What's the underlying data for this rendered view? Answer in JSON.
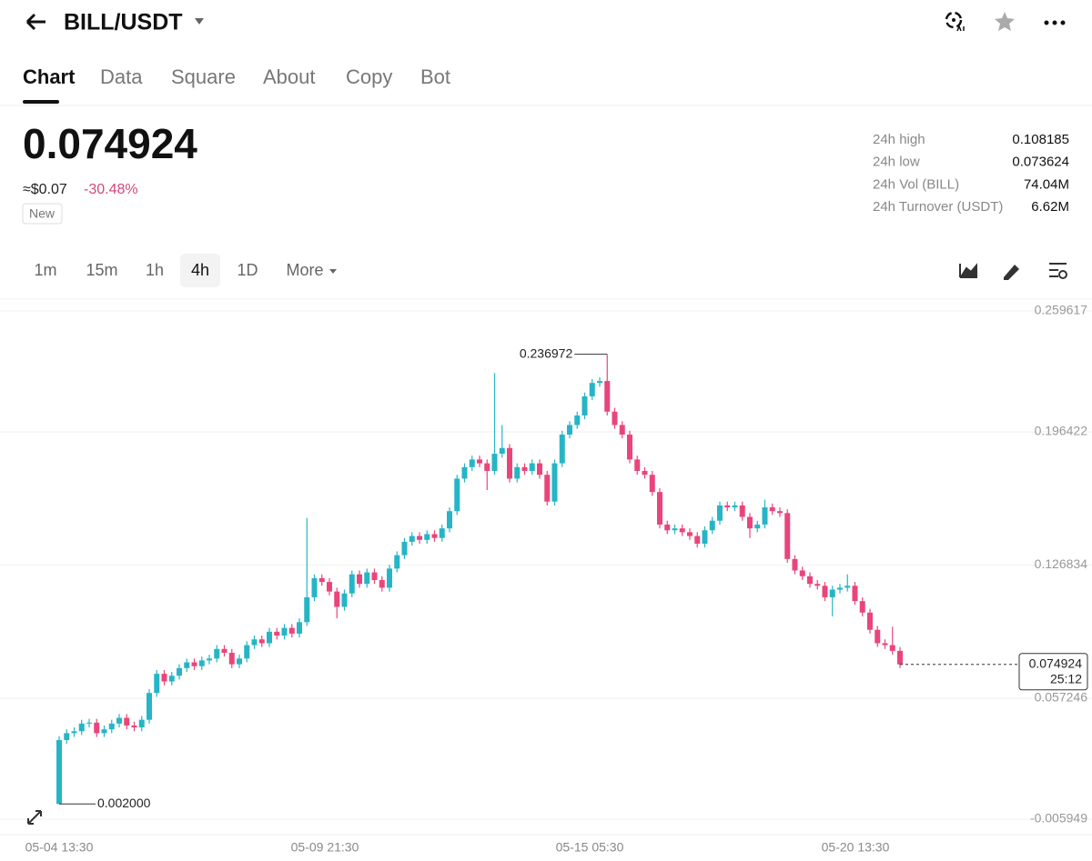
{
  "header": {
    "pair": "BILL/USDT"
  },
  "tabs": [
    "Chart",
    "Data",
    "Square",
    "About",
    "Copy",
    "Bot"
  ],
  "price": {
    "last": "0.074924",
    "approx": "≈$0.07",
    "change": "-30.48%",
    "badge": "New"
  },
  "stats": [
    {
      "label": "24h high",
      "value": "0.108185"
    },
    {
      "label": "24h low",
      "value": "0.073624"
    },
    {
      "label": "24h Vol (BILL)",
      "value": "74.04M"
    },
    {
      "label": "24h Turnover (USDT)",
      "value": "6.62M"
    }
  ],
  "intervals": [
    "1m",
    "15m",
    "1h",
    "4h",
    "1D",
    "More"
  ],
  "chart": {
    "type": "candlestick",
    "up_color": "#26b5c6",
    "down_color": "#e9457b",
    "ylim": [
      -0.005949,
      0.259617
    ],
    "yticks": [
      -0.005949,
      0.057246,
      0.126834,
      0.196422,
      0.259617
    ],
    "grid": true,
    "xtick_labels": [
      "05-04 13:30",
      "05-09 21:30",
      "05-15 05:30",
      "05-20 13:30"
    ],
    "high_label": 0.236972,
    "low_label": {
      "value": 0.002,
      "label": "0.002000"
    },
    "last_price": 0.074924,
    "countdown": "25:12",
    "candles": [
      [
        0.002,
        0.0374,
        0.002,
        0.0354
      ],
      [
        0.0354,
        0.041,
        0.0334,
        0.039
      ],
      [
        0.039,
        0.042,
        0.037,
        0.04
      ],
      [
        0.04,
        0.046,
        0.038,
        0.044
      ],
      [
        0.044,
        0.0465,
        0.042,
        0.0445
      ],
      [
        0.0445,
        0.0465,
        0.037,
        0.039
      ],
      [
        0.039,
        0.043,
        0.037,
        0.041
      ],
      [
        0.041,
        0.046,
        0.039,
        0.044
      ],
      [
        0.044,
        0.049,
        0.042,
        0.047
      ],
      [
        0.047,
        0.049,
        0.041,
        0.043
      ],
      [
        0.043,
        0.045,
        0.04,
        0.042
      ],
      [
        0.042,
        0.048,
        0.04,
        0.046
      ],
      [
        0.046,
        0.062,
        0.044,
        0.06
      ],
      [
        0.06,
        0.072,
        0.058,
        0.07
      ],
      [
        0.07,
        0.072,
        0.064,
        0.066
      ],
      [
        0.066,
        0.071,
        0.064,
        0.069
      ],
      [
        0.069,
        0.075,
        0.067,
        0.073
      ],
      [
        0.073,
        0.078,
        0.071,
        0.076
      ],
      [
        0.076,
        0.078,
        0.072,
        0.074
      ],
      [
        0.074,
        0.079,
        0.072,
        0.077
      ],
      [
        0.077,
        0.08,
        0.075,
        0.078
      ],
      [
        0.078,
        0.085,
        0.076,
        0.083
      ],
      [
        0.083,
        0.085,
        0.079,
        0.081
      ],
      [
        0.081,
        0.083,
        0.073,
        0.075
      ],
      [
        0.075,
        0.08,
        0.073,
        0.078
      ],
      [
        0.078,
        0.087,
        0.076,
        0.085
      ],
      [
        0.085,
        0.09,
        0.083,
        0.088
      ],
      [
        0.088,
        0.09,
        0.084,
        0.086
      ],
      [
        0.086,
        0.094,
        0.084,
        0.092
      ],
      [
        0.092,
        0.094,
        0.088,
        0.09
      ],
      [
        0.09,
        0.096,
        0.088,
        0.094
      ],
      [
        0.094,
        0.096,
        0.089,
        0.091
      ],
      [
        0.091,
        0.099,
        0.089,
        0.097
      ],
      [
        0.097,
        0.1514,
        0.095,
        0.11
      ],
      [
        0.11,
        0.122,
        0.108,
        0.12
      ],
      [
        0.12,
        0.122,
        0.116,
        0.118
      ],
      [
        0.118,
        0.12,
        0.111,
        0.113
      ],
      [
        0.113,
        0.115,
        0.099,
        0.105
      ],
      [
        0.105,
        0.114,
        0.103,
        0.112
      ],
      [
        0.112,
        0.124,
        0.11,
        0.122
      ],
      [
        0.122,
        0.124,
        0.115,
        0.117
      ],
      [
        0.117,
        0.125,
        0.115,
        0.123
      ],
      [
        0.123,
        0.125,
        0.117,
        0.119
      ],
      [
        0.119,
        0.121,
        0.113,
        0.115
      ],
      [
        0.115,
        0.127,
        0.113,
        0.125
      ],
      [
        0.125,
        0.134,
        0.123,
        0.132
      ],
      [
        0.132,
        0.141,
        0.13,
        0.139
      ],
      [
        0.139,
        0.144,
        0.137,
        0.142
      ],
      [
        0.142,
        0.144,
        0.138,
        0.14
      ],
      [
        0.14,
        0.145,
        0.138,
        0.143
      ],
      [
        0.143,
        0.145,
        0.139,
        0.141
      ],
      [
        0.141,
        0.148,
        0.139,
        0.146
      ],
      [
        0.146,
        0.157,
        0.144,
        0.155
      ],
      [
        0.155,
        0.174,
        0.153,
        0.172
      ],
      [
        0.172,
        0.18,
        0.17,
        0.178
      ],
      [
        0.178,
        0.184,
        0.176,
        0.182
      ],
      [
        0.182,
        0.184,
        0.178,
        0.18
      ],
      [
        0.18,
        0.182,
        0.166,
        0.176
      ],
      [
        0.176,
        0.2272,
        0.174,
        0.185
      ],
      [
        0.185,
        0.2,
        0.183,
        0.188
      ],
      [
        0.188,
        0.19,
        0.17,
        0.172
      ],
      [
        0.172,
        0.18,
        0.17,
        0.178
      ],
      [
        0.178,
        0.18,
        0.174,
        0.176
      ],
      [
        0.176,
        0.182,
        0.174,
        0.18
      ],
      [
        0.18,
        0.182,
        0.172,
        0.174
      ],
      [
        0.174,
        0.176,
        0.158,
        0.16
      ],
      [
        0.16,
        0.182,
        0.158,
        0.18
      ],
      [
        0.18,
        0.197,
        0.178,
        0.195
      ],
      [
        0.195,
        0.202,
        0.193,
        0.2
      ],
      [
        0.2,
        0.207,
        0.198,
        0.205
      ],
      [
        0.205,
        0.217,
        0.203,
        0.215
      ],
      [
        0.215,
        0.224,
        0.213,
        0.222
      ],
      [
        0.222,
        0.225,
        0.22,
        0.223
      ],
      [
        0.223,
        0.236972,
        0.205,
        0.207
      ],
      [
        0.207,
        0.209,
        0.198,
        0.2
      ],
      [
        0.2,
        0.202,
        0.193,
        0.195
      ],
      [
        0.195,
        0.197,
        0.18,
        0.182
      ],
      [
        0.182,
        0.184,
        0.174,
        0.176
      ],
      [
        0.176,
        0.178,
        0.172,
        0.174
      ],
      [
        0.174,
        0.176,
        0.163,
        0.165
      ],
      [
        0.165,
        0.167,
        0.146,
        0.148
      ],
      [
        0.148,
        0.15,
        0.143,
        0.145
      ],
      [
        0.145,
        0.148,
        0.143,
        0.146
      ],
      [
        0.146,
        0.148,
        0.142,
        0.144
      ],
      [
        0.144,
        0.146,
        0.14,
        0.142
      ],
      [
        0.142,
        0.144,
        0.136,
        0.138
      ],
      [
        0.138,
        0.147,
        0.136,
        0.145
      ],
      [
        0.145,
        0.152,
        0.143,
        0.15
      ],
      [
        0.15,
        0.16,
        0.148,
        0.158
      ],
      [
        0.158,
        0.16,
        0.155,
        0.157
      ],
      [
        0.157,
        0.16,
        0.155,
        0.158
      ],
      [
        0.158,
        0.16,
        0.15,
        0.152
      ],
      [
        0.152,
        0.154,
        0.141,
        0.146
      ],
      [
        0.146,
        0.15,
        0.144,
        0.148
      ],
      [
        0.148,
        0.161,
        0.146,
        0.157
      ],
      [
        0.157,
        0.159,
        0.153,
        0.155
      ],
      [
        0.155,
        0.157,
        0.152,
        0.154
      ],
      [
        0.154,
        0.156,
        0.128,
        0.13
      ],
      [
        0.13,
        0.132,
        0.122,
        0.124
      ],
      [
        0.124,
        0.126,
        0.119,
        0.121
      ],
      [
        0.121,
        0.123,
        0.115,
        0.117
      ],
      [
        0.117,
        0.119,
        0.114,
        0.116
      ],
      [
        0.116,
        0.118,
        0.108,
        0.11
      ],
      [
        0.11,
        0.116,
        0.1,
        0.114
      ],
      [
        0.114,
        0.117,
        0.112,
        0.115
      ],
      [
        0.115,
        0.122,
        0.113,
        0.116
      ],
      [
        0.116,
        0.118,
        0.106,
        0.108
      ],
      [
        0.108,
        0.11,
        0.1,
        0.102
      ],
      [
        0.102,
        0.104,
        0.091,
        0.093
      ],
      [
        0.093,
        0.095,
        0.084,
        0.086
      ],
      [
        0.086,
        0.088,
        0.083,
        0.085
      ],
      [
        0.085,
        0.0946,
        0.08,
        0.082
      ],
      [
        0.082,
        0.084,
        0.073,
        0.074924
      ]
    ]
  }
}
